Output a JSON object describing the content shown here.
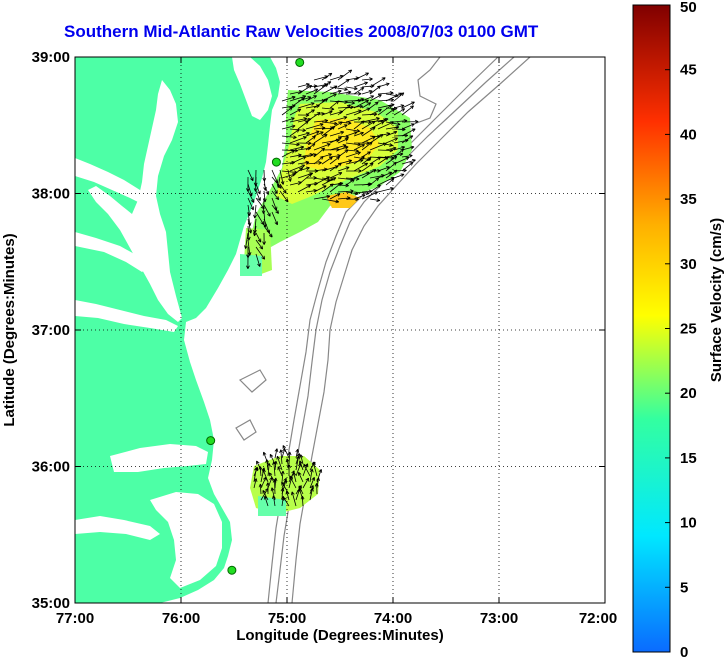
{
  "title": "Southern Mid-Atlantic Raw Velocities 2008/07/03 0100 GMT",
  "map": {
    "xlabel": "Longitude (Degrees:Minutes)",
    "ylabel": "Latitude (Degrees:Minutes)",
    "lon_range": [
      -77,
      -72
    ],
    "lat_range": [
      35,
      39
    ],
    "x_ticks": [
      "77:00",
      "76:00",
      "75:00",
      "74:00",
      "73:00",
      "72:00"
    ],
    "y_ticks": [
      "35:00",
      "36:00",
      "37:00",
      "38:00",
      "39:00"
    ],
    "grid": "dotted",
    "land_color": "#4dffa6",
    "stations": [
      {
        "lon": -74.88,
        "lat": 38.96
      },
      {
        "lon": -75.1,
        "lat": 38.23
      },
      {
        "lon": -75.72,
        "lat": 36.19
      },
      {
        "lon": -75.52,
        "lat": 35.24
      }
    ]
  },
  "colorbar": {
    "label": "Surface Velocity (cm/s)",
    "min": 0,
    "max": 50,
    "ticks": [
      "0",
      "5",
      "10",
      "15",
      "20",
      "25",
      "30",
      "35",
      "40",
      "45",
      "50"
    ]
  }
}
